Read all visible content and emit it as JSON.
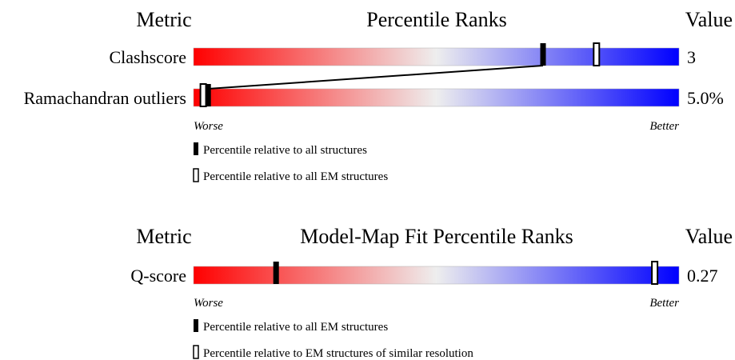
{
  "chart_data": [
    {
      "type": "percentile-bar",
      "title": "Percentile Ranks",
      "metric_header": "Metric",
      "value_header": "Value",
      "worse_label": "Worse",
      "better_label": "Better",
      "rows": [
        {
          "metric": "Clashscore",
          "value": "3",
          "all_percentile": 72,
          "em_percentile": 83
        },
        {
          "metric": "Ramachandran outliers",
          "value": "5.0%",
          "all_percentile": 3,
          "em_percentile": 2
        }
      ],
      "legend": [
        {
          "marker": "filled",
          "label": "Percentile relative to all structures"
        },
        {
          "marker": "hollow",
          "label": "Percentile relative to all EM structures"
        }
      ]
    },
    {
      "type": "percentile-bar",
      "title": "Model-Map Fit Percentile Ranks",
      "metric_header": "Metric",
      "value_header": "Value",
      "worse_label": "Worse",
      "better_label": "Better",
      "rows": [
        {
          "metric": "Q-score",
          "value": "0.27",
          "all_percentile": 17,
          "em_percentile": 95
        }
      ],
      "legend": [
        {
          "marker": "filled",
          "label": "Percentile relative to all EM structures"
        },
        {
          "marker": "hollow",
          "label": "Percentile relative to EM structures of similar resolution"
        }
      ]
    }
  ],
  "colors": {
    "worse": "#ff0000",
    "middle": "#eeeeee",
    "better": "#0000ff"
  }
}
